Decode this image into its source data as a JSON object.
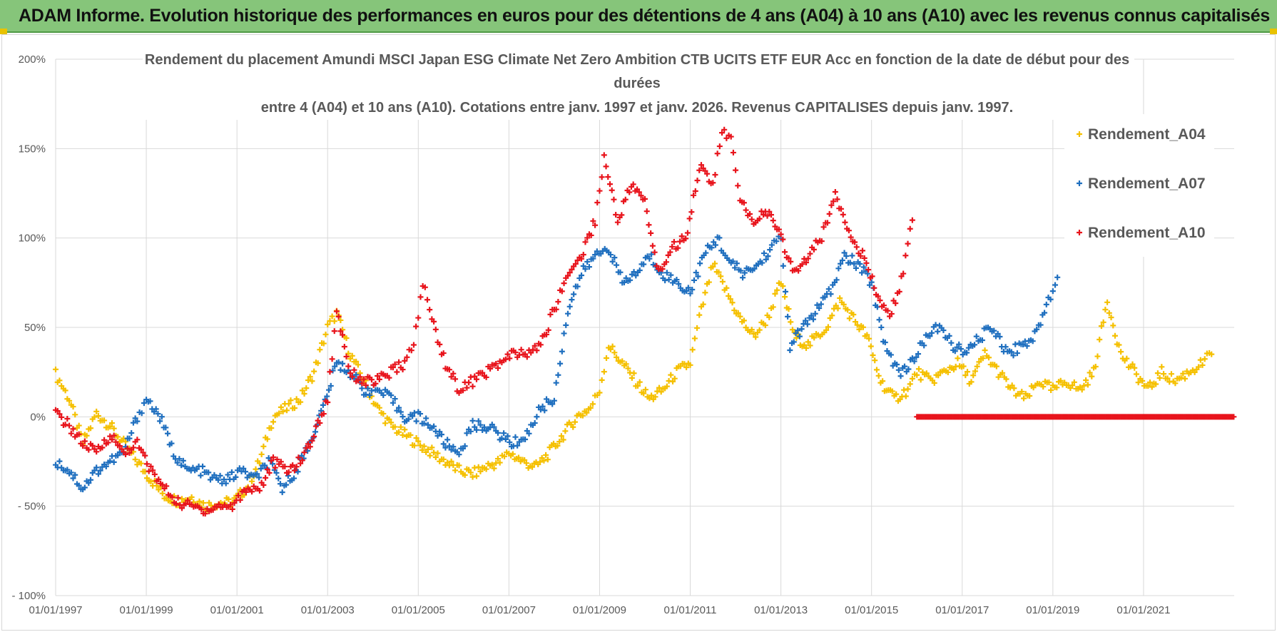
{
  "header": {
    "title": "ADAM Informe. Evolution historique des performances en euros pour des détentions de 4 ans (A04) à 10 ans (A10) avec les revenus connus capitalisés"
  },
  "colors": {
    "banner": "#86c57a",
    "A04": "#f5c000",
    "A07": "#1f6fbf",
    "A10": "#e8141c",
    "grid": "#d9d9d9",
    "text": "#595959"
  },
  "chart_data": {
    "type": "scatter",
    "title_lines": [
      "Rendement du placement Amundi MSCI Japan ESG Climate Net Zero Ambition CTB UCITS ETF EUR Acc en fonction de la date de début pour des",
      "durées",
      "entre 4 (A04) et 10 ans (A10).  Cotations entre janv. 1997 et janv. 2026. Revenus CAPITALISES depuis janv. 1997."
    ],
    "xlabel": "",
    "ylabel": "",
    "x_range": [
      1997.0,
      2023.0
    ],
    "ylim": [
      -100,
      200
    ],
    "y_ticks": [
      -100,
      -50,
      0,
      50,
      100,
      150,
      200
    ],
    "y_tick_labels": [
      "- 100%",
      "- 50%",
      "0%",
      "50%",
      "100%",
      "150%",
      "200%"
    ],
    "x_ticks": [
      1997,
      1999,
      2001,
      2003,
      2005,
      2007,
      2009,
      2011,
      2013,
      2015,
      2017,
      2019,
      2021
    ],
    "x_tick_labels": [
      "01/01/1997",
      "01/01/1999",
      "01/01/2001",
      "01/01/2003",
      "01/01/2005",
      "01/01/2007",
      "01/01/2009",
      "01/01/2011",
      "01/01/2013",
      "01/01/2015",
      "01/01/2017",
      "01/01/2019",
      "01/01/2021"
    ],
    "grid": "horizontal and vertical",
    "legend_position": "right",
    "marker": "+",
    "series": [
      {
        "name": "Rendement_A04",
        "color": "#f5c000",
        "points": [
          [
            1997.0,
            24
          ],
          [
            1997.3,
            10
          ],
          [
            1997.6,
            -15
          ],
          [
            1997.9,
            2
          ],
          [
            1998.2,
            -5
          ],
          [
            1998.5,
            -15
          ],
          [
            1998.8,
            -25
          ],
          [
            1999.1,
            -35
          ],
          [
            1999.4,
            -44
          ],
          [
            1999.7,
            -47
          ],
          [
            2000.0,
            -45
          ],
          [
            2000.3,
            -50
          ],
          [
            2000.6,
            -48
          ],
          [
            2000.9,
            -48
          ],
          [
            2001.2,
            -40
          ],
          [
            2001.5,
            -25
          ],
          [
            2001.8,
            0
          ],
          [
            2002.1,
            5
          ],
          [
            2002.4,
            10
          ],
          [
            2002.7,
            25
          ],
          [
            2003.0,
            50
          ],
          [
            2003.2,
            58
          ],
          [
            2003.5,
            35
          ],
          [
            2003.8,
            20
          ],
          [
            2004.1,
            5
          ],
          [
            2004.4,
            -5
          ],
          [
            2004.7,
            -10
          ],
          [
            2005.0,
            -15
          ],
          [
            2005.3,
            -20
          ],
          [
            2005.6,
            -25
          ],
          [
            2005.9,
            -30
          ],
          [
            2006.2,
            -32
          ],
          [
            2006.5,
            -28
          ],
          [
            2006.8,
            -25
          ],
          [
            2007.0,
            -20
          ],
          [
            2007.3,
            -25
          ],
          [
            2007.6,
            -28
          ],
          [
            2007.9,
            -20
          ],
          [
            2008.2,
            -10
          ],
          [
            2008.5,
            0
          ],
          [
            2008.8,
            5
          ],
          [
            2009.0,
            15
          ],
          [
            2009.2,
            40
          ],
          [
            2009.5,
            30
          ],
          [
            2009.8,
            20
          ],
          [
            2010.1,
            10
          ],
          [
            2010.4,
            15
          ],
          [
            2010.7,
            25
          ],
          [
            2011.0,
            30
          ],
          [
            2011.2,
            55
          ],
          [
            2011.5,
            85
          ],
          [
            2011.8,
            70
          ],
          [
            2012.1,
            55
          ],
          [
            2012.4,
            45
          ],
          [
            2012.7,
            55
          ],
          [
            2013.0,
            75
          ],
          [
            2013.3,
            45
          ],
          [
            2013.6,
            40
          ],
          [
            2014.0,
            50
          ],
          [
            2014.3,
            65
          ],
          [
            2014.6,
            55
          ],
          [
            2014.9,
            45
          ],
          [
            2015.2,
            20
          ],
          [
            2015.5,
            10
          ],
          [
            2015.8,
            15
          ],
          [
            2016.0,
            25
          ],
          [
            2016.3,
            20
          ],
          [
            2016.6,
            25
          ],
          [
            2016.9,
            30
          ],
          [
            2017.2,
            20
          ],
          [
            2017.5,
            35
          ],
          [
            2017.8,
            25
          ],
          [
            2018.1,
            15
          ],
          [
            2018.4,
            10
          ],
          [
            2018.7,
            20
          ],
          [
            2019.0,
            15
          ],
          [
            2019.3,
            20
          ],
          [
            2019.6,
            15
          ],
          [
            2019.9,
            25
          ],
          [
            2020.2,
            65
          ],
          [
            2020.5,
            35
          ],
          [
            2020.8,
            25
          ],
          [
            2021.1,
            15
          ],
          [
            2021.4,
            25
          ],
          [
            2021.7,
            20
          ],
          [
            2022.0,
            25
          ],
          [
            2022.3,
            30
          ],
          [
            2022.5,
            35
          ]
        ]
      },
      {
        "name": "Rendement_A07",
        "color": "#1f6fbf",
        "points": [
          [
            1997.0,
            -25
          ],
          [
            1997.3,
            -30
          ],
          [
            1997.6,
            -40
          ],
          [
            1997.9,
            -30
          ],
          [
            1998.2,
            -25
          ],
          [
            1998.5,
            -20
          ],
          [
            1998.8,
            0
          ],
          [
            1999.0,
            10
          ],
          [
            1999.3,
            0
          ],
          [
            1999.6,
            -20
          ],
          [
            1999.9,
            -30
          ],
          [
            2000.2,
            -30
          ],
          [
            2000.5,
            -35
          ],
          [
            2000.8,
            -35
          ],
          [
            2001.1,
            -30
          ],
          [
            2001.4,
            -35
          ],
          [
            2001.7,
            -25
          ],
          [
            2002.0,
            -40
          ],
          [
            2002.3,
            -30
          ],
          [
            2002.6,
            -15
          ],
          [
            2002.9,
            5
          ],
          [
            2003.2,
            30
          ],
          [
            2003.5,
            25
          ],
          [
            2003.8,
            15
          ],
          [
            2004.1,
            15
          ],
          [
            2004.4,
            10
          ],
          [
            2004.7,
            0
          ],
          [
            2005.0,
            0
          ],
          [
            2005.3,
            -5
          ],
          [
            2005.6,
            -15
          ],
          [
            2005.9,
            -20
          ],
          [
            2006.2,
            -5
          ],
          [
            2006.5,
            -5
          ],
          [
            2006.8,
            -10
          ],
          [
            2007.1,
            -15
          ],
          [
            2007.4,
            -10
          ],
          [
            2007.7,
            5
          ],
          [
            2008.0,
            10
          ],
          [
            2008.3,
            60
          ],
          [
            2008.6,
            80
          ],
          [
            2008.9,
            90
          ],
          [
            2009.2,
            95
          ],
          [
            2009.5,
            75
          ],
          [
            2009.8,
            80
          ],
          [
            2010.1,
            90
          ],
          [
            2010.4,
            80
          ],
          [
            2010.7,
            75
          ],
          [
            2011.0,
            70
          ],
          [
            2011.3,
            90
          ],
          [
            2011.6,
            100
          ],
          [
            2011.9,
            85
          ],
          [
            2012.2,
            80
          ],
          [
            2012.5,
            85
          ],
          [
            2012.8,
            95
          ],
          [
            2013.0,
            100
          ],
          [
            2013.2,
            40
          ],
          [
            2013.5,
            50
          ],
          [
            2013.8,
            60
          ],
          [
            2014.1,
            70
          ],
          [
            2014.4,
            90
          ],
          [
            2014.7,
            85
          ],
          [
            2015.0,
            75
          ],
          [
            2015.3,
            40
          ],
          [
            2015.6,
            25
          ],
          [
            2015.9,
            30
          ],
          [
            2016.2,
            45
          ],
          [
            2016.5,
            50
          ],
          [
            2016.8,
            40
          ],
          [
            2017.1,
            35
          ],
          [
            2017.4,
            45
          ],
          [
            2017.7,
            50
          ],
          [
            2018.0,
            35
          ],
          [
            2018.3,
            40
          ],
          [
            2018.6,
            45
          ],
          [
            2018.9,
            65
          ],
          [
            2019.1,
            78
          ]
        ]
      },
      {
        "name": "Rendement_A10",
        "color": "#e8141c",
        "points": [
          [
            1997.0,
            2
          ],
          [
            1997.3,
            -5
          ],
          [
            1997.6,
            -15
          ],
          [
            1997.9,
            -20
          ],
          [
            1998.2,
            -10
          ],
          [
            1998.5,
            -20
          ],
          [
            1998.8,
            -15
          ],
          [
            1999.1,
            -30
          ],
          [
            1999.4,
            -40
          ],
          [
            1999.7,
            -48
          ],
          [
            2000.0,
            -50
          ],
          [
            2000.3,
            -52
          ],
          [
            2000.6,
            -50
          ],
          [
            2000.9,
            -50
          ],
          [
            2001.2,
            -40
          ],
          [
            2001.5,
            -40
          ],
          [
            2001.8,
            -25
          ],
          [
            2002.1,
            -30
          ],
          [
            2002.4,
            -25
          ],
          [
            2002.7,
            -10
          ],
          [
            2003.0,
            10
          ],
          [
            2003.2,
            60
          ],
          [
            2003.5,
            25
          ],
          [
            2003.8,
            20
          ],
          [
            2004.1,
            20
          ],
          [
            2004.4,
            25
          ],
          [
            2004.7,
            30
          ],
          [
            2004.9,
            40
          ],
          [
            2005.1,
            75
          ],
          [
            2005.3,
            55
          ],
          [
            2005.6,
            30
          ],
          [
            2005.9,
            15
          ],
          [
            2006.2,
            20
          ],
          [
            2006.5,
            25
          ],
          [
            2006.8,
            30
          ],
          [
            2007.1,
            35
          ],
          [
            2007.4,
            35
          ],
          [
            2007.7,
            40
          ],
          [
            2008.0,
            60
          ],
          [
            2008.3,
            80
          ],
          [
            2008.6,
            90
          ],
          [
            2008.9,
            110
          ],
          [
            2009.1,
            145
          ],
          [
            2009.4,
            110
          ],
          [
            2009.7,
            130
          ],
          [
            2010.0,
            120
          ],
          [
            2010.3,
            80
          ],
          [
            2010.6,
            95
          ],
          [
            2010.9,
            100
          ],
          [
            2011.2,
            140
          ],
          [
            2011.5,
            130
          ],
          [
            2011.7,
            160
          ],
          [
            2011.9,
            155
          ],
          [
            2012.1,
            120
          ],
          [
            2012.4,
            110
          ],
          [
            2012.7,
            115
          ],
          [
            2013.0,
            100
          ],
          [
            2013.3,
            80
          ],
          [
            2013.6,
            90
          ],
          [
            2013.9,
            100
          ],
          [
            2014.2,
            125
          ],
          [
            2014.5,
            105
          ],
          [
            2014.8,
            90
          ],
          [
            2015.1,
            70
          ],
          [
            2015.4,
            55
          ],
          [
            2015.7,
            80
          ],
          [
            2015.9,
            110
          ]
        ]
      },
      {
        "name": "Rendement_A10 (zéro)",
        "color": "#e8141c",
        "segment": {
          "x_start": 2016.0,
          "x_end": 2023.0,
          "value": 0
        }
      }
    ]
  },
  "legend": [
    {
      "label": "Rendement_A04",
      "color": "#f5c000"
    },
    {
      "label": "Rendement_A07",
      "color": "#1f6fbf"
    },
    {
      "label": "Rendement_A10",
      "color": "#e8141c"
    }
  ]
}
